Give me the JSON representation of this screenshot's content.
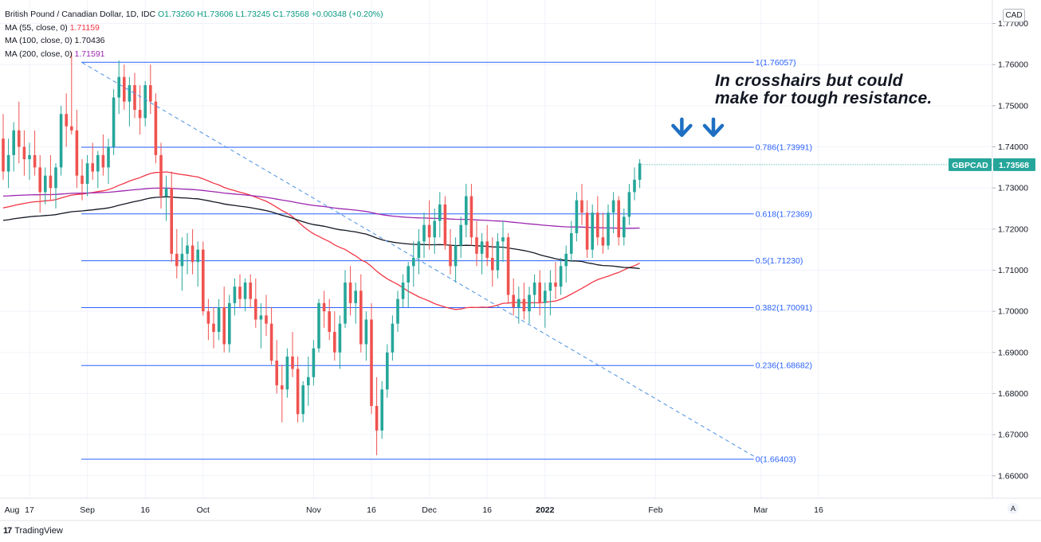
{
  "header": {
    "symbol_title": "British Pound / Canadian Dollar, 1D, IDC",
    "ohlc": {
      "o": "O1.73260",
      "h": "H1.73606",
      "l": "L1.73245",
      "c": "C1.73568",
      "change": "+0.00348 (+0.20%)"
    },
    "ma": [
      {
        "label": "MA (55, close, 0)",
        "value": "1.71159"
      },
      {
        "label": "MA (100, close, 0)",
        "value": "1.70436"
      },
      {
        "label": "MA (200, close, 0)",
        "value": "1.71591"
      }
    ]
  },
  "currency_label": "CAD",
  "auto_scale_label": "A",
  "footer": {
    "brand": "TradingView",
    "logo": "17"
  },
  "chart_data": {
    "type": "candlestick",
    "title": "British Pound / Canadian Dollar, 1D, IDC",
    "annotation": [
      "In crosshairs but could",
      "make for tough resistance."
    ],
    "price_tag": {
      "symbol": "GBPCAD",
      "value": "1.73568"
    },
    "colors": {
      "up": "#26a69a",
      "down": "#ef5350",
      "ma55": "#f23645",
      "ma100": "#131722",
      "ma200": "#9c27b0",
      "fib": "#2962ff",
      "arrow": "#1e6fc2"
    },
    "ylim": [
      1.655,
      1.775
    ],
    "y_ticks": [
      "1.66000",
      "1.67000",
      "1.68000",
      "1.69000",
      "1.70000",
      "1.71000",
      "1.72000",
      "1.73000",
      "1.74000",
      "1.75000",
      "1.76000",
      "1.77000"
    ],
    "x_labels": [
      {
        "label": "Aug",
        "i": -6,
        "bold": false
      },
      {
        "label": "17",
        "i": 5,
        "bold": false
      },
      {
        "label": "Sep",
        "i": 16,
        "bold": false
      },
      {
        "label": "16",
        "i": 27,
        "bold": false
      },
      {
        "label": "Oct",
        "i": 38,
        "bold": false
      },
      {
        "label": "Nov",
        "i": 59,
        "bold": false
      },
      {
        "label": "16",
        "i": 70,
        "bold": false
      },
      {
        "label": "Dec",
        "i": 81,
        "bold": false
      },
      {
        "label": "16",
        "i": 92,
        "bold": false
      },
      {
        "label": "2022",
        "i": 103,
        "bold": true
      },
      {
        "label": "Feb",
        "i": 124,
        "bold": false
      },
      {
        "label": "Mar",
        "i": 144,
        "bold": false
      },
      {
        "label": "16",
        "i": 155,
        "bold": false
      }
    ],
    "fib_levels": [
      {
        "label": "1(1.76057)",
        "value": 1.76057
      },
      {
        "label": "0.786(1.73991)",
        "value": 1.73991
      },
      {
        "label": "0.618(1.72369)",
        "value": 1.72369
      },
      {
        "label": "0.5(1.71230)",
        "value": 1.7123
      },
      {
        "label": "0.382(1.70091)",
        "value": 1.70091
      },
      {
        "label": "0.236(1.68682)",
        "value": 1.68682
      },
      {
        "label": "0(1.66403)",
        "value": 1.66403
      }
    ],
    "fib_range": {
      "i_start": 15,
      "i_end": 143
    },
    "trendline": {
      "from": {
        "i": 15,
        "value": 1.7605
      },
      "to": {
        "i": 143,
        "value": 1.6645
      }
    },
    "arrows_at": [
      {
        "i": 129,
        "value": 1.744
      },
      {
        "i": 135,
        "value": 1.744
      }
    ],
    "candles": [
      [
        1.742,
        1.748,
        1.732,
        1.734
      ],
      [
        1.734,
        1.742,
        1.73,
        1.738
      ],
      [
        1.738,
        1.746,
        1.734,
        1.744
      ],
      [
        1.744,
        1.751,
        1.736,
        1.74
      ],
      [
        1.74,
        1.744,
        1.733,
        1.737
      ],
      [
        1.737,
        1.741,
        1.732,
        1.738
      ],
      [
        1.738,
        1.744,
        1.733,
        1.735
      ],
      [
        1.735,
        1.738,
        1.724,
        1.729
      ],
      [
        1.729,
        1.735,
        1.726,
        1.733
      ],
      [
        1.733,
        1.738,
        1.727,
        1.73
      ],
      [
        1.73,
        1.736,
        1.725,
        1.735
      ],
      [
        1.735,
        1.75,
        1.733,
        1.748
      ],
      [
        1.748,
        1.753,
        1.74,
        1.745
      ],
      [
        1.745,
        1.763,
        1.743,
        1.744
      ],
      [
        1.744,
        1.749,
        1.73,
        1.733
      ],
      [
        1.733,
        1.737,
        1.727,
        1.731
      ],
      [
        1.731,
        1.738,
        1.728,
        1.736
      ],
      [
        1.736,
        1.741,
        1.732,
        1.734
      ],
      [
        1.734,
        1.739,
        1.73,
        1.738
      ],
      [
        1.738,
        1.743,
        1.733,
        1.735
      ],
      [
        1.735,
        1.742,
        1.731,
        1.74
      ],
      [
        1.74,
        1.754,
        1.738,
        1.752
      ],
      [
        1.752,
        1.761,
        1.748,
        1.757
      ],
      [
        1.757,
        1.76,
        1.749,
        1.751
      ],
      [
        1.751,
        1.757,
        1.745,
        1.755
      ],
      [
        1.755,
        1.758,
        1.747,
        1.749
      ],
      [
        1.749,
        1.755,
        1.743,
        1.747
      ],
      [
        1.747,
        1.756,
        1.745,
        1.755
      ],
      [
        1.755,
        1.76,
        1.748,
        1.751
      ],
      [
        1.751,
        1.753,
        1.736,
        1.738
      ],
      [
        1.738,
        1.741,
        1.725,
        1.728
      ],
      [
        1.728,
        1.733,
        1.722,
        1.73
      ],
      [
        1.73,
        1.734,
        1.712,
        1.714
      ],
      [
        1.714,
        1.72,
        1.708,
        1.711
      ],
      [
        1.711,
        1.718,
        1.705,
        1.714
      ],
      [
        1.714,
        1.719,
        1.709,
        1.716
      ],
      [
        1.716,
        1.72,
        1.709,
        1.712
      ],
      [
        1.712,
        1.717,
        1.706,
        1.715
      ],
      [
        1.715,
        1.717,
        1.699,
        1.7
      ],
      [
        1.7,
        1.703,
        1.693,
        1.697
      ],
      [
        1.697,
        1.701,
        1.691,
        1.695
      ],
      [
        1.695,
        1.703,
        1.693,
        1.701
      ],
      [
        1.701,
        1.706,
        1.69,
        1.692
      ],
      [
        1.692,
        1.704,
        1.69,
        1.702
      ],
      [
        1.702,
        1.708,
        1.699,
        1.706
      ],
      [
        1.706,
        1.709,
        1.701,
        1.703
      ],
      [
        1.703,
        1.708,
        1.7,
        1.707
      ],
      [
        1.707,
        1.709,
        1.701,
        1.703
      ],
      [
        1.703,
        1.708,
        1.696,
        1.698
      ],
      [
        1.698,
        1.702,
        1.691,
        1.699
      ],
      [
        1.699,
        1.704,
        1.694,
        1.697
      ],
      [
        1.697,
        1.701,
        1.687,
        1.688
      ],
      [
        1.688,
        1.693,
        1.68,
        1.682
      ],
      [
        1.682,
        1.687,
        1.673,
        1.681
      ],
      [
        1.681,
        1.691,
        1.679,
        1.689
      ],
      [
        1.689,
        1.695,
        1.684,
        1.686
      ],
      [
        1.686,
        1.689,
        1.673,
        1.675
      ],
      [
        1.675,
        1.683,
        1.673,
        1.682
      ],
      [
        1.682,
        1.689,
        1.677,
        1.684
      ],
      [
        1.684,
        1.693,
        1.682,
        1.691
      ],
      [
        1.691,
        1.703,
        1.69,
        1.702
      ],
      [
        1.702,
        1.705,
        1.696,
        1.7
      ],
      [
        1.7,
        1.703,
        1.693,
        1.695
      ],
      [
        1.695,
        1.7,
        1.688,
        1.69
      ],
      [
        1.69,
        1.699,
        1.686,
        1.697
      ],
      [
        1.697,
        1.71,
        1.696,
        1.707
      ],
      [
        1.707,
        1.711,
        1.699,
        1.702
      ],
      [
        1.702,
        1.707,
        1.697,
        1.705
      ],
      [
        1.705,
        1.709,
        1.69,
        1.692
      ],
      [
        1.692,
        1.7,
        1.688,
        1.698
      ],
      [
        1.698,
        1.702,
        1.675,
        1.677
      ],
      [
        1.677,
        1.684,
        1.665,
        1.671
      ],
      [
        1.671,
        1.683,
        1.669,
        1.681
      ],
      [
        1.681,
        1.692,
        1.679,
        1.69
      ],
      [
        1.69,
        1.699,
        1.688,
        1.697
      ],
      [
        1.697,
        1.705,
        1.695,
        1.703
      ],
      [
        1.703,
        1.709,
        1.701,
        1.707
      ],
      [
        1.707,
        1.712,
        1.701,
        1.711
      ],
      [
        1.711,
        1.717,
        1.706,
        1.713
      ],
      [
        1.713,
        1.72,
        1.709,
        1.717
      ],
      [
        1.717,
        1.724,
        1.713,
        1.721
      ],
      [
        1.721,
        1.727,
        1.715,
        1.718
      ],
      [
        1.718,
        1.725,
        1.714,
        1.722
      ],
      [
        1.722,
        1.729,
        1.718,
        1.726
      ],
      [
        1.726,
        1.728,
        1.715,
        1.716
      ],
      [
        1.716,
        1.72,
        1.709,
        1.711
      ],
      [
        1.711,
        1.718,
        1.707,
        1.716
      ],
      [
        1.716,
        1.723,
        1.713,
        1.721
      ],
      [
        1.721,
        1.731,
        1.718,
        1.728
      ],
      [
        1.728,
        1.731,
        1.716,
        1.718
      ],
      [
        1.718,
        1.722,
        1.711,
        1.714
      ],
      [
        1.714,
        1.719,
        1.709,
        1.717
      ],
      [
        1.717,
        1.721,
        1.711,
        1.713
      ],
      [
        1.713,
        1.718,
        1.706,
        1.71
      ],
      [
        1.71,
        1.719,
        1.708,
        1.717
      ],
      [
        1.717,
        1.722,
        1.712,
        1.718
      ],
      [
        1.718,
        1.719,
        1.702,
        1.704
      ],
      [
        1.704,
        1.708,
        1.699,
        1.701
      ],
      [
        1.701,
        1.706,
        1.697,
        1.703
      ],
      [
        1.703,
        1.707,
        1.698,
        1.7
      ],
      [
        1.7,
        1.706,
        1.697,
        1.704
      ],
      [
        1.704,
        1.709,
        1.701,
        1.707
      ],
      [
        1.707,
        1.71,
        1.699,
        1.702
      ],
      [
        1.702,
        1.707,
        1.696,
        1.705
      ],
      [
        1.705,
        1.71,
        1.699,
        1.707
      ],
      [
        1.707,
        1.712,
        1.703,
        1.706
      ],
      [
        1.706,
        1.713,
        1.704,
        1.711
      ],
      [
        1.711,
        1.716,
        1.707,
        1.714
      ],
      [
        1.714,
        1.722,
        1.712,
        1.719
      ],
      [
        1.719,
        1.729,
        1.717,
        1.727
      ],
      [
        1.727,
        1.731,
        1.721,
        1.724
      ],
      [
        1.724,
        1.727,
        1.713,
        1.715
      ],
      [
        1.715,
        1.726,
        1.713,
        1.724
      ],
      [
        1.724,
        1.728,
        1.716,
        1.718
      ],
      [
        1.718,
        1.724,
        1.714,
        1.716
      ],
      [
        1.716,
        1.726,
        1.715,
        1.724
      ],
      [
        1.724,
        1.729,
        1.719,
        1.727
      ],
      [
        1.727,
        1.728,
        1.716,
        1.718
      ],
      [
        1.718,
        1.725,
        1.716,
        1.723
      ],
      [
        1.723,
        1.731,
        1.721,
        1.729
      ],
      [
        1.729,
        1.735,
        1.727,
        1.732
      ],
      [
        1.732,
        1.737,
        1.73,
        1.736
      ]
    ]
  }
}
